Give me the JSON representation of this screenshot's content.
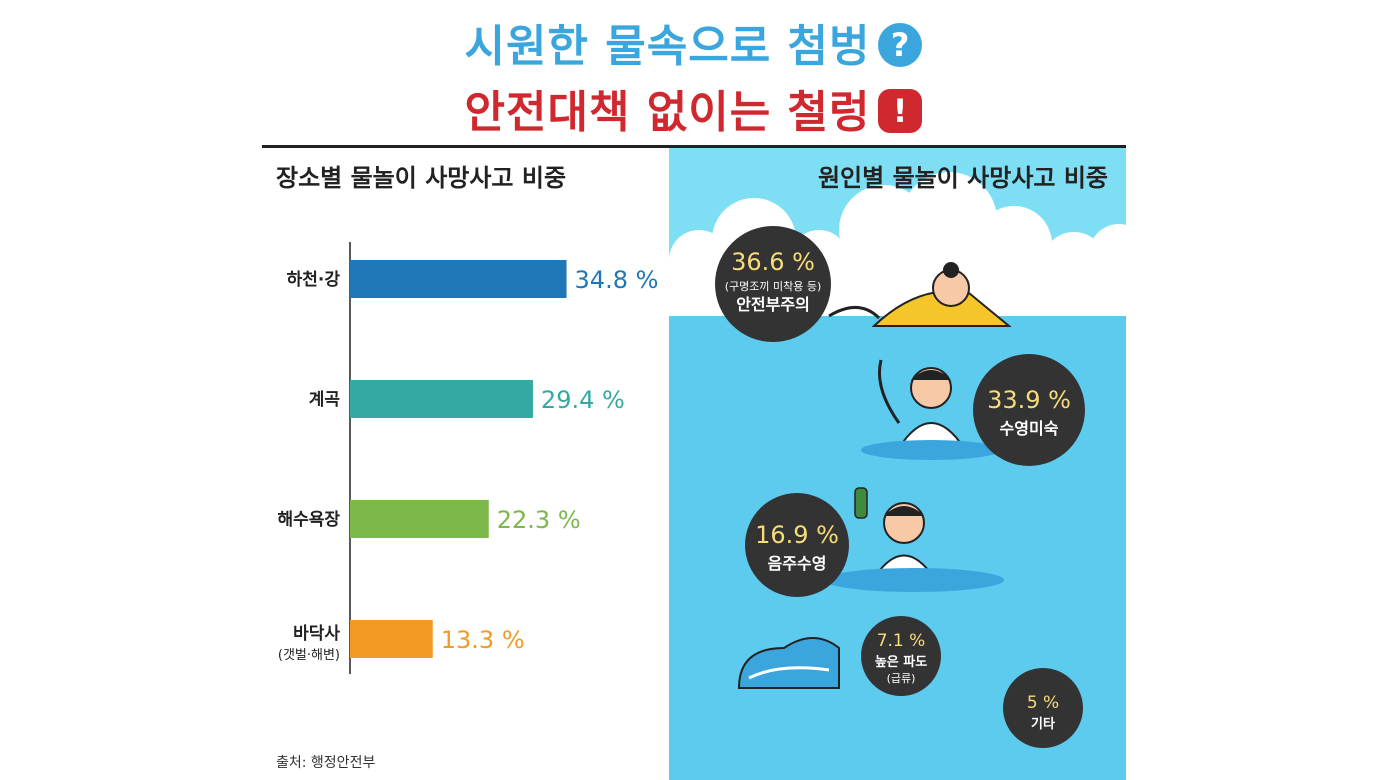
{
  "title": {
    "line1": "시원한 물속으로 첨벙",
    "line1_badge": "?",
    "line2": "안전대책 없이는 철렁",
    "line2_badge": "!"
  },
  "source": "출처: 행정안전부",
  "chart_data": [
    {
      "type": "bar",
      "orientation": "horizontal",
      "title": "장소별 물놀이 사망사고 비중",
      "categories": [
        {
          "label": "하천·강",
          "sublabel": ""
        },
        {
          "label": "계곡",
          "sublabel": ""
        },
        {
          "label": "해수욕장",
          "sublabel": ""
        },
        {
          "label": "바닥사",
          "sublabel": "(갯벌·해변)"
        }
      ],
      "values": [
        34.8,
        29.4,
        22.3,
        13.3
      ],
      "value_labels": [
        "34.8 %",
        "29.4 %",
        "22.3 %",
        "13.3 %"
      ],
      "colors": [
        "#1f77b8",
        "#34a9a3",
        "#7cb84a",
        "#f29b24"
      ],
      "xlim": [
        0,
        45
      ],
      "grid": false
    },
    {
      "type": "bubble-list",
      "title": "원인별 물놀이 사망사고 비중",
      "items": [
        {
          "value": 36.6,
          "value_label": "36.6 %",
          "note": "(구명조끼 미착용 등)",
          "label": "안전부주의"
        },
        {
          "value": 33.9,
          "value_label": "33.9 %",
          "note": "",
          "label": "수영미숙"
        },
        {
          "value": 16.9,
          "value_label": "16.9 %",
          "note": "",
          "label": "음주수영"
        },
        {
          "value": 7.1,
          "value_label": "7.1 %",
          "note": "(급류)",
          "label": "높은 파도"
        },
        {
          "value": 5,
          "value_label": "5 %",
          "note": "",
          "label": "기타"
        }
      ],
      "bubble_color": "#333333",
      "value_color": "#f8dc7a"
    }
  ],
  "colors": {
    "title_blue": "#3aa6dd",
    "title_red": "#d0282f",
    "panel_bg": "#7edff4",
    "water": "#5ccbee"
  }
}
